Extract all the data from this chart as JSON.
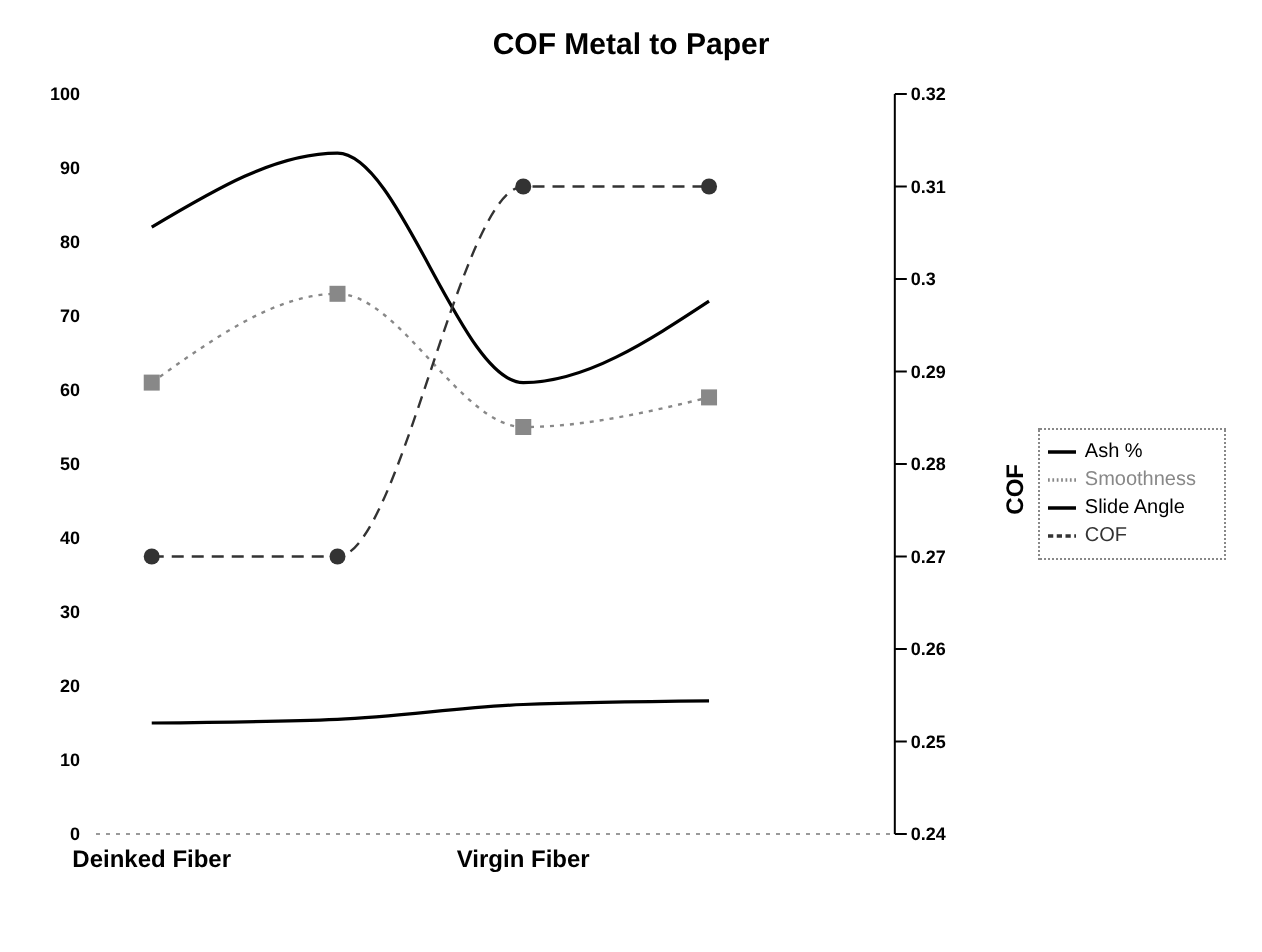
{
  "chart_data": {
    "type": "line",
    "title": "COF Metal to Paper",
    "categories": [
      "Deinked Fiber",
      null,
      "Virgin Fiber",
      null
    ],
    "series": [
      {
        "name": "Ash %",
        "color": "#000000",
        "values": [
          82,
          92,
          61,
          72
        ],
        "line_style": "solid",
        "marker": "none"
      },
      {
        "name": "Smoothness",
        "color": "#888888",
        "values": [
          61,
          73,
          55,
          59
        ],
        "line_style": "dotted",
        "marker": "square"
      },
      {
        "name": "Slide Angle",
        "color": "#000000",
        "values": [
          15,
          15.5,
          17.5,
          18
        ],
        "line_style": "solid",
        "marker": "none"
      },
      {
        "name": "COF",
        "color": "#333333",
        "values": [
          0.27,
          0.27,
          0.31,
          0.31
        ],
        "line_style": "dashed",
        "marker": "circle",
        "axis": "y2"
      }
    ],
    "ylim": [
      0,
      100
    ],
    "yticks": [
      0,
      10,
      20,
      30,
      40,
      50,
      60,
      70,
      80,
      90,
      100
    ],
    "y2lim": [
      0.24,
      0.32
    ],
    "y2ticks": [
      0.24,
      0.25,
      0.26,
      0.27,
      0.28,
      0.29,
      0.3,
      0.31,
      0.32
    ],
    "y2label": "COF",
    "grid": false,
    "legend": "right"
  }
}
